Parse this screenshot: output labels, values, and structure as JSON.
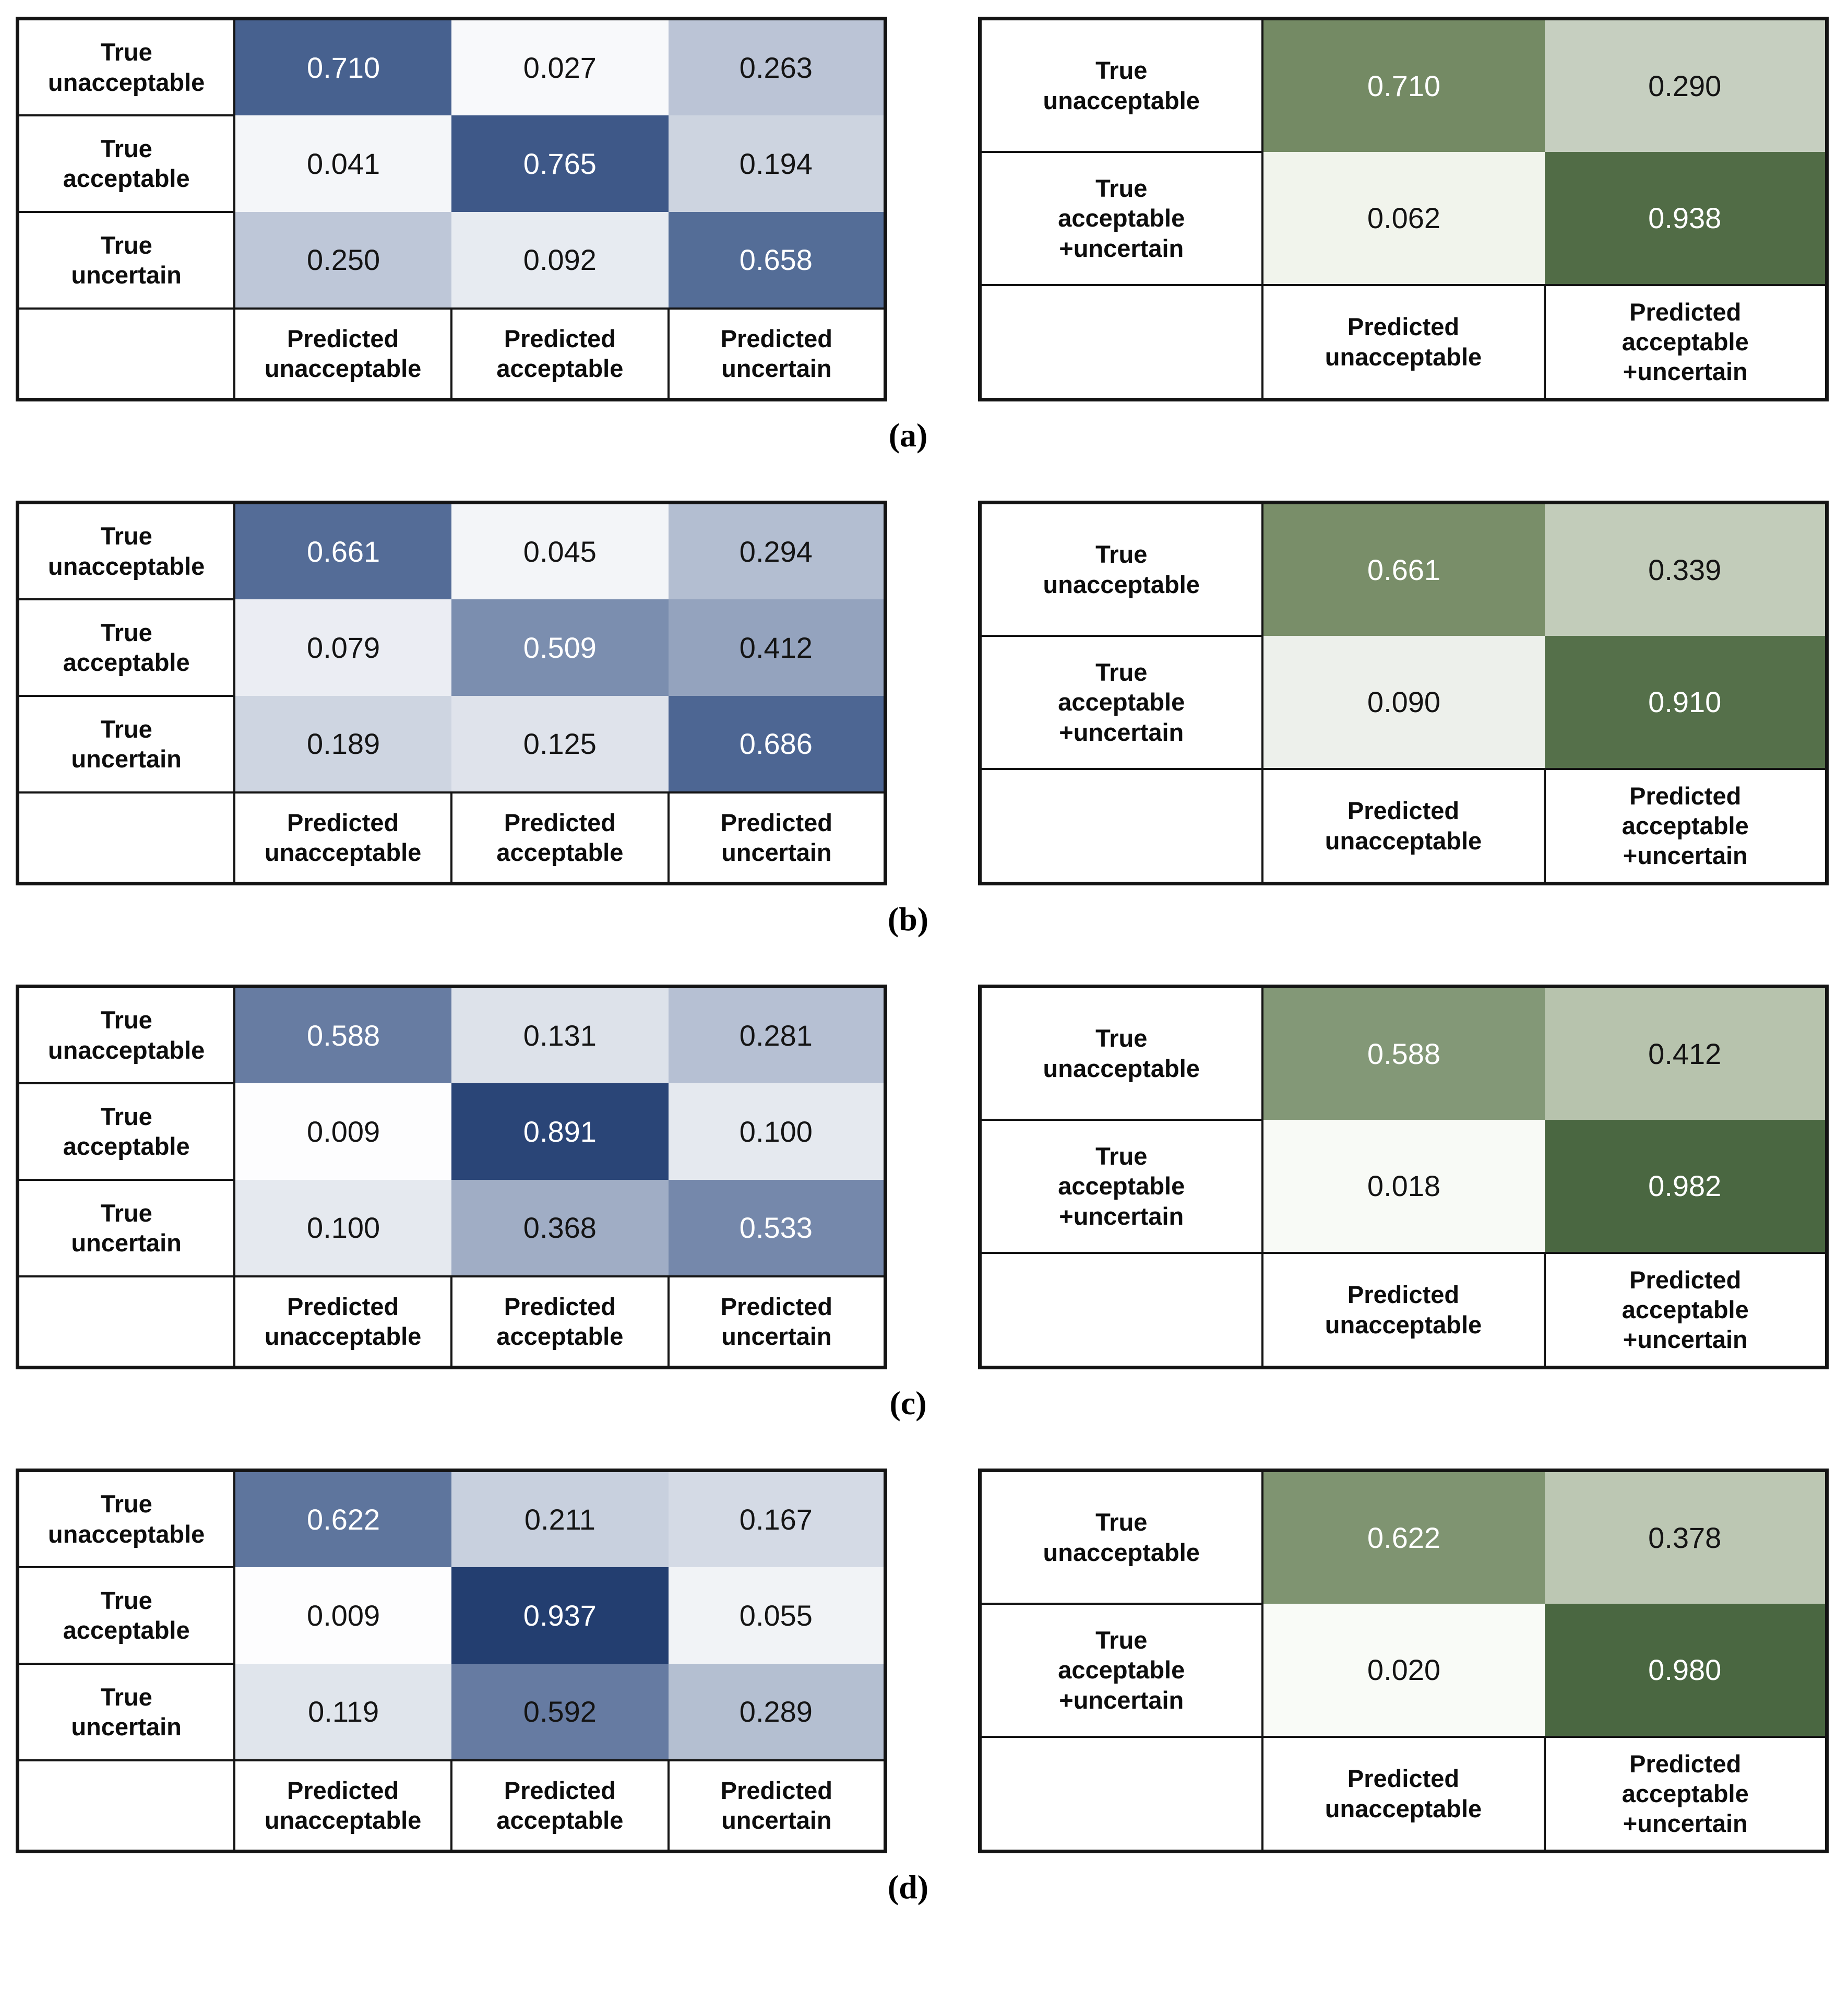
{
  "colors": {
    "background": "#FFFFFF",
    "border": "#141414",
    "text_black": "#141414",
    "text_white": "#FFFFFF",
    "blue_strong": "#2A4577",
    "blue_mid": "#47618F",
    "green_strong": "#4A6741",
    "green_mid": "#748A64"
  },
  "figure": {
    "panels": [
      {
        "id": "a",
        "caption": "(a)",
        "three_class": {
          "row_labels": [
            [
              "True",
              "unacceptable"
            ],
            [
              "True",
              "acceptable"
            ],
            [
              "True",
              "uncertain"
            ]
          ],
          "col_labels": [
            [
              "Predicted",
              "unacceptable"
            ],
            [
              "Predicted",
              "acceptable"
            ],
            [
              "Predicted",
              "uncertain"
            ]
          ],
          "cells": [
            [
              {
                "value": "0.710",
                "bg": "#47618F",
                "fg": "#FFFFFF"
              },
              {
                "value": "0.027",
                "bg": "#F8F9FB",
                "fg": "#141414"
              },
              {
                "value": "0.263",
                "bg": "#BBC4D6",
                "fg": "#141414"
              }
            ],
            [
              {
                "value": "0.041",
                "bg": "#F4F6F9",
                "fg": "#141414"
              },
              {
                "value": "0.765",
                "bg": "#3E5888",
                "fg": "#FFFFFF"
              },
              {
                "value": "0.194",
                "bg": "#CDD4E0",
                "fg": "#141414"
              }
            ],
            [
              {
                "value": "0.250",
                "bg": "#BEC7D8",
                "fg": "#141414"
              },
              {
                "value": "0.092",
                "bg": "#E7EBF1",
                "fg": "#141414"
              },
              {
                "value": "0.658",
                "bg": "#546D97",
                "fg": "#FFFFFF"
              }
            ]
          ]
        },
        "two_class": {
          "row_labels": [
            [
              "True",
              "unacceptable"
            ],
            [
              "True",
              "acceptable",
              "+uncertain"
            ]
          ],
          "col_labels": [
            [
              "Predicted",
              "unacceptable"
            ],
            [
              "Predicted",
              "acceptable",
              "+uncertain"
            ]
          ],
          "cells": [
            [
              {
                "value": "0.710",
                "bg": "#748A64",
                "fg": "#FFFFFF"
              },
              {
                "value": "0.290",
                "bg": "#C6CFC0",
                "fg": "#141414"
              }
            ],
            [
              {
                "value": "0.062",
                "bg": "#F1F4EC",
                "fg": "#141414"
              },
              {
                "value": "0.938",
                "bg": "#516C46",
                "fg": "#FFFFFF"
              }
            ]
          ]
        }
      },
      {
        "id": "b",
        "caption": "(b)",
        "three_class": {
          "row_labels": [
            [
              "True",
              "unacceptable"
            ],
            [
              "True",
              "acceptable"
            ],
            [
              "True",
              "uncertain"
            ]
          ],
          "col_labels": [
            [
              "Predicted",
              "unacceptable"
            ],
            [
              "Predicted",
              "acceptable"
            ],
            [
              "Predicted",
              "uncertain"
            ]
          ],
          "cells": [
            [
              {
                "value": "0.661",
                "bg": "#546C97",
                "fg": "#FFFFFF"
              },
              {
                "value": "0.045",
                "bg": "#F3F5F8",
                "fg": "#141414"
              },
              {
                "value": "0.294",
                "bg": "#B3BED1",
                "fg": "#141414"
              }
            ],
            [
              {
                "value": "0.079",
                "bg": "#EBEDF3",
                "fg": "#141414"
              },
              {
                "value": "0.509",
                "bg": "#7B8EAF",
                "fg": "#FFFFFF"
              },
              {
                "value": "0.412",
                "bg": "#94A3BE",
                "fg": "#141414"
              }
            ],
            [
              {
                "value": "0.189",
                "bg": "#CED5E1",
                "fg": "#141414"
              },
              {
                "value": "0.125",
                "bg": "#DFE3EB",
                "fg": "#141414"
              },
              {
                "value": "0.686",
                "bg": "#4D6693",
                "fg": "#FFFFFF"
              }
            ]
          ]
        },
        "two_class": {
          "row_labels": [
            [
              "True",
              "unacceptable"
            ],
            [
              "True",
              "acceptable",
              "+uncertain"
            ]
          ],
          "col_labels": [
            [
              "Predicted",
              "unacceptable"
            ],
            [
              "Predicted",
              "acceptable",
              "+uncertain"
            ]
          ],
          "cells": [
            [
              {
                "value": "0.661",
                "bg": "#798E69",
                "fg": "#FFFFFF"
              },
              {
                "value": "0.339",
                "bg": "#C2CCBA",
                "fg": "#141414"
              }
            ],
            [
              {
                "value": "0.090",
                "bg": "#EDF0EB",
                "fg": "#141414"
              },
              {
                "value": "0.910",
                "bg": "#55704A",
                "fg": "#FFFFFF"
              }
            ]
          ]
        }
      },
      {
        "id": "c",
        "caption": "(c)",
        "three_class": {
          "row_labels": [
            [
              "True",
              "unacceptable"
            ],
            [
              "True",
              "acceptable"
            ],
            [
              "True",
              "uncertain"
            ]
          ],
          "col_labels": [
            [
              "Predicted",
              "unacceptable"
            ],
            [
              "Predicted",
              "acceptable"
            ],
            [
              "Predicted",
              "uncertain"
            ]
          ],
          "cells": [
            [
              {
                "value": "0.588",
                "bg": "#677CA2",
                "fg": "#FFFFFF"
              },
              {
                "value": "0.131",
                "bg": "#DDE2EA",
                "fg": "#141414"
              },
              {
                "value": "0.281",
                "bg": "#B6C0D3",
                "fg": "#141414"
              }
            ],
            [
              {
                "value": "0.009",
                "bg": "#FDFDFE",
                "fg": "#141414"
              },
              {
                "value": "0.891",
                "bg": "#2A4577",
                "fg": "#FFFFFF"
              },
              {
                "value": "0.100",
                "bg": "#E5E9EF",
                "fg": "#141414"
              }
            ],
            [
              {
                "value": "0.100",
                "bg": "#E5E9EF",
                "fg": "#141414"
              },
              {
                "value": "0.368",
                "bg": "#A0ADC5",
                "fg": "#141414"
              },
              {
                "value": "0.533",
                "bg": "#7588AB",
                "fg": "#FFFFFF"
              }
            ]
          ]
        },
        "two_class": {
          "row_labels": [
            [
              "True",
              "unacceptable"
            ],
            [
              "True",
              "acceptable",
              "+uncertain"
            ]
          ],
          "col_labels": [
            [
              "Predicted",
              "unacceptable"
            ],
            [
              "Predicted",
              "acceptable",
              "+uncertain"
            ]
          ],
          "cells": [
            [
              {
                "value": "0.588",
                "bg": "#839877",
                "fg": "#FFFFFF"
              },
              {
                "value": "0.412",
                "bg": "#B7C3AD",
                "fg": "#141414"
              }
            ],
            [
              {
                "value": "0.018",
                "bg": "#F8FAF6",
                "fg": "#141414"
              },
              {
                "value": "0.982",
                "bg": "#4A6741",
                "fg": "#FFFFFF"
              }
            ]
          ]
        }
      },
      {
        "id": "d",
        "caption": "(d)",
        "three_class": {
          "row_labels": [
            [
              "True",
              "unacceptable"
            ],
            [
              "True",
              "acceptable"
            ],
            [
              "True",
              "uncertain"
            ]
          ],
          "col_labels": [
            [
              "Predicted",
              "unacceptable"
            ],
            [
              "Predicted",
              "acceptable"
            ],
            [
              "Predicted",
              "uncertain"
            ]
          ],
          "cells": [
            [
              {
                "value": "0.622",
                "bg": "#5E759D",
                "fg": "#FFFFFF"
              },
              {
                "value": "0.211",
                "bg": "#C8D0DE",
                "fg": "#141414"
              },
              {
                "value": "0.167",
                "bg": "#D4DAE5",
                "fg": "#141414"
              }
            ],
            [
              {
                "value": "0.009",
                "bg": "#FDFDFE",
                "fg": "#141414"
              },
              {
                "value": "0.937",
                "bg": "#233E70",
                "fg": "#FFFFFF"
              },
              {
                "value": "0.055",
                "bg": "#F1F3F6",
                "fg": "#141414"
              }
            ],
            [
              {
                "value": "0.119",
                "bg": "#E0E5EC",
                "fg": "#141414"
              },
              {
                "value": "0.592",
                "bg": "#667BA2",
                "fg": "#141414"
              },
              {
                "value": "0.289",
                "bg": "#B4BFD1",
                "fg": "#141414"
              }
            ]
          ]
        },
        "two_class": {
          "row_labels": [
            [
              "True",
              "unacceptable"
            ],
            [
              "True",
              "acceptable",
              "+uncertain"
            ]
          ],
          "col_labels": [
            [
              "Predicted",
              "unacceptable"
            ],
            [
              "Predicted",
              "acceptable",
              "+uncertain"
            ]
          ],
          "cells": [
            [
              {
                "value": "0.622",
                "bg": "#7F9471",
                "fg": "#FFFFFF"
              },
              {
                "value": "0.378",
                "bg": "#BCC7B3",
                "fg": "#141414"
              }
            ],
            [
              {
                "value": "0.020",
                "bg": "#F9FBF7",
                "fg": "#141414"
              },
              {
                "value": "0.980",
                "bg": "#4A6741",
                "fg": "#FFFFFF"
              }
            ]
          ]
        }
      }
    ]
  },
  "chart_data": [
    {
      "type": "heatmap",
      "panel": "a",
      "title": "3-class confusion matrix (a)",
      "rows": [
        "True unacceptable",
        "True acceptable",
        "True uncertain"
      ],
      "cols": [
        "Predicted unacceptable",
        "Predicted acceptable",
        "Predicted uncertain"
      ],
      "values": [
        [
          0.71,
          0.027,
          0.263
        ],
        [
          0.041,
          0.765,
          0.194
        ],
        [
          0.25,
          0.092,
          0.658
        ]
      ],
      "colormap": "blue",
      "value_range": [
        0,
        1
      ],
      "grid": false,
      "legend": "none"
    },
    {
      "type": "heatmap",
      "panel": "a",
      "title": "2-class confusion matrix (a)",
      "rows": [
        "True unacceptable",
        "True acceptable+uncertain"
      ],
      "cols": [
        "Predicted unacceptable",
        "Predicted acceptable+uncertain"
      ],
      "values": [
        [
          0.71,
          0.29
        ],
        [
          0.062,
          0.938
        ]
      ],
      "colormap": "green",
      "value_range": [
        0,
        1
      ],
      "grid": false,
      "legend": "none"
    },
    {
      "type": "heatmap",
      "panel": "b",
      "title": "3-class confusion matrix (b)",
      "rows": [
        "True unacceptable",
        "True acceptable",
        "True uncertain"
      ],
      "cols": [
        "Predicted unacceptable",
        "Predicted acceptable",
        "Predicted uncertain"
      ],
      "values": [
        [
          0.661,
          0.045,
          0.294
        ],
        [
          0.079,
          0.509,
          0.412
        ],
        [
          0.189,
          0.125,
          0.686
        ]
      ],
      "colormap": "blue",
      "value_range": [
        0,
        1
      ],
      "grid": false,
      "legend": "none"
    },
    {
      "type": "heatmap",
      "panel": "b",
      "title": "2-class confusion matrix (b)",
      "rows": [
        "True unacceptable",
        "True acceptable+uncertain"
      ],
      "cols": [
        "Predicted unacceptable",
        "Predicted acceptable+uncertain"
      ],
      "values": [
        [
          0.661,
          0.339
        ],
        [
          0.09,
          0.91
        ]
      ],
      "colormap": "green",
      "value_range": [
        0,
        1
      ],
      "grid": false,
      "legend": "none"
    },
    {
      "type": "heatmap",
      "panel": "c",
      "title": "3-class confusion matrix (c)",
      "rows": [
        "True unacceptable",
        "True acceptable",
        "True uncertain"
      ],
      "cols": [
        "Predicted unacceptable",
        "Predicted acceptable",
        "Predicted uncertain"
      ],
      "values": [
        [
          0.588,
          0.131,
          0.281
        ],
        [
          0.009,
          0.891,
          0.1
        ],
        [
          0.1,
          0.368,
          0.533
        ]
      ],
      "colormap": "blue",
      "value_range": [
        0,
        1
      ],
      "grid": false,
      "legend": "none"
    },
    {
      "type": "heatmap",
      "panel": "c",
      "title": "2-class confusion matrix (c)",
      "rows": [
        "True unacceptable",
        "True acceptable+uncertain"
      ],
      "cols": [
        "Predicted unacceptable",
        "Predicted acceptable+uncertain"
      ],
      "values": [
        [
          0.588,
          0.412
        ],
        [
          0.018,
          0.982
        ]
      ],
      "colormap": "green",
      "value_range": [
        0,
        1
      ],
      "grid": false,
      "legend": "none"
    },
    {
      "type": "heatmap",
      "panel": "d",
      "title": "3-class confusion matrix (d)",
      "rows": [
        "True unacceptable",
        "True acceptable",
        "True uncertain"
      ],
      "cols": [
        "Predicted unacceptable",
        "Predicted acceptable",
        "Predicted uncertain"
      ],
      "values": [
        [
          0.622,
          0.211,
          0.167
        ],
        [
          0.009,
          0.937,
          0.055
        ],
        [
          0.119,
          0.592,
          0.289
        ]
      ],
      "colormap": "blue",
      "value_range": [
        0,
        1
      ],
      "grid": false,
      "legend": "none"
    },
    {
      "type": "heatmap",
      "panel": "d",
      "title": "2-class confusion matrix (d)",
      "rows": [
        "True unacceptable",
        "True acceptable+uncertain"
      ],
      "cols": [
        "Predicted unacceptable",
        "Predicted acceptable+uncertain"
      ],
      "values": [
        [
          0.622,
          0.378
        ],
        [
          0.02,
          0.98
        ]
      ],
      "colormap": "green",
      "value_range": [
        0,
        1
      ],
      "grid": false,
      "legend": "none"
    }
  ]
}
